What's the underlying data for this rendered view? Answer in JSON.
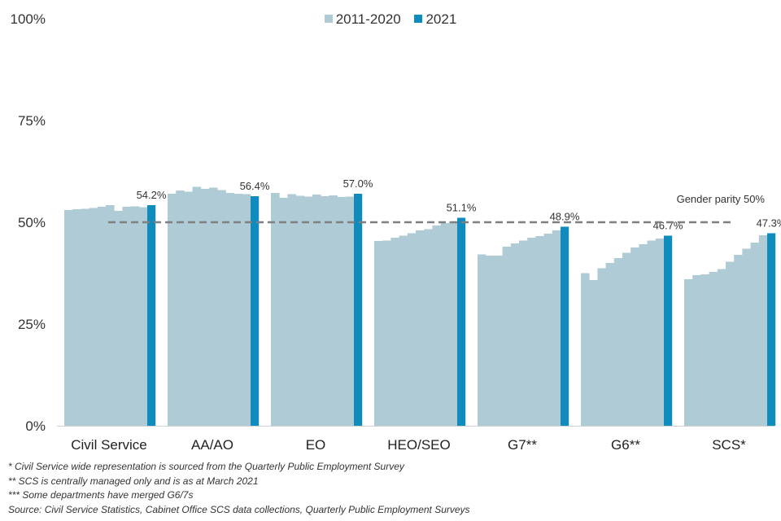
{
  "chart_data": {
    "type": "bar",
    "title": "",
    "xlabel": "",
    "ylabel": "",
    "ylim": [
      0,
      100
    ],
    "yticks": [
      0,
      25,
      50,
      75,
      100
    ],
    "ytick_labels": [
      "0%",
      "25%",
      "50%",
      "75%",
      "100%"
    ],
    "legend": [
      {
        "name": "2011-2020",
        "color": "#aecbd6"
      },
      {
        "name": "2021",
        "color": "#0f8bbe"
      }
    ],
    "legend_position": "top-center",
    "years_history": [
      "2011",
      "2012",
      "2013",
      "2014",
      "2015",
      "2016",
      "2017",
      "2018",
      "2019",
      "2020"
    ],
    "groups": [
      {
        "category": "Civil Service",
        "history": [
          53.0,
          53.2,
          53.3,
          53.5,
          53.8,
          54.2,
          52.8,
          53.8,
          53.9,
          53.7
        ],
        "value_2021": 54.2,
        "label": "54.2%"
      },
      {
        "category": "AA/AO",
        "history": [
          57.0,
          57.8,
          57.5,
          58.7,
          58.2,
          58.5,
          57.9,
          57.2,
          57.0,
          56.9
        ],
        "value_2021": 56.4,
        "label": "56.4%"
      },
      {
        "category": "EO",
        "history": [
          57.2,
          56.0,
          56.9,
          56.5,
          56.3,
          56.8,
          56.4,
          56.6,
          56.2,
          56.3
        ],
        "value_2021": 57.0,
        "label": "57.0%"
      },
      {
        "category": "HEO/SEO",
        "history": [
          45.4,
          45.5,
          46.2,
          46.7,
          47.3,
          48.0,
          48.3,
          49.2,
          49.8,
          50.2
        ],
        "value_2021": 51.1,
        "label": "51.1%"
      },
      {
        "category": "G7**",
        "history": [
          42.1,
          41.8,
          41.8,
          44.0,
          44.8,
          45.5,
          46.2,
          46.6,
          47.2,
          48.0
        ],
        "value_2021": 48.9,
        "label": "48.9%"
      },
      {
        "category": "G6**",
        "history": [
          37.5,
          35.8,
          38.7,
          40.0,
          41.2,
          42.5,
          43.8,
          44.6,
          45.5,
          46.0
        ],
        "value_2021": 46.7,
        "label": "46.7%"
      },
      {
        "category": "SCS*",
        "history": [
          36.0,
          37.0,
          37.2,
          37.8,
          38.5,
          40.3,
          42.0,
          43.5,
          45.0,
          46.8
        ],
        "value_2021": 47.3,
        "label": "47.3%"
      }
    ],
    "reference_line": {
      "value": 50,
      "label": "Gender parity 50%",
      "style": "dashed",
      "color": "#7f7f7f"
    }
  },
  "notes": [
    "* Civil Service wide representation is sourced from the Quarterly Public Employment Survey",
    "** SCS is centrally managed only and is as at March 2021",
    "*** Some departments have merged G6/7s",
    "Source: Civil Service Statistics, Cabinet Office SCS data collections, Quarterly Public Employment Surveys"
  ]
}
